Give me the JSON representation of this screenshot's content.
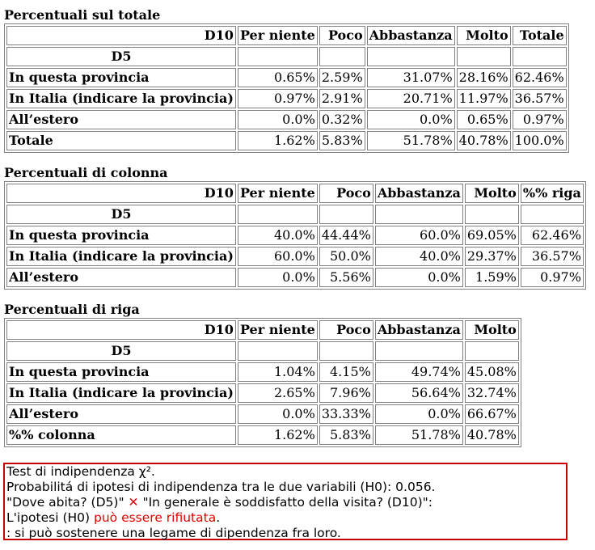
{
  "tables": [
    {
      "title": "Percentuali sul totale",
      "corner": "D10",
      "row_var": "D5",
      "columns": [
        "Per niente",
        "Poco",
        "Abbastanza",
        "Molto",
        "Totale"
      ],
      "rows": [
        {
          "label": "In questa provincia",
          "cells": [
            "0.65%",
            "2.59%",
            "31.07%",
            "28.16%",
            "62.46%"
          ]
        },
        {
          "label": "In Italia (indicare la provincia)",
          "cells": [
            "0.97%",
            "2.91%",
            "20.71%",
            "11.97%",
            "36.57%"
          ]
        },
        {
          "label": "All’estero",
          "cells": [
            "0.0%",
            "0.32%",
            "0.0%",
            "0.65%",
            "0.97%"
          ]
        },
        {
          "label": "Totale",
          "cells": [
            "1.62%",
            "5.83%",
            "51.78%",
            "40.78%",
            "100.0%"
          ]
        }
      ]
    },
    {
      "title": "Percentuali di colonna",
      "corner": "D10",
      "row_var": "D5",
      "columns": [
        "Per niente",
        "Poco",
        "Abbastanza",
        "Molto",
        "%% riga"
      ],
      "rows": [
        {
          "label": "In questa provincia",
          "cells": [
            "40.0%",
            "44.44%",
            "60.0%",
            "69.05%",
            "62.46%"
          ]
        },
        {
          "label": "In Italia (indicare la provincia)",
          "cells": [
            "60.0%",
            "50.0%",
            "40.0%",
            "29.37%",
            "36.57%"
          ]
        },
        {
          "label": "All’estero",
          "cells": [
            "0.0%",
            "5.56%",
            "0.0%",
            "1.59%",
            "0.97%"
          ]
        }
      ]
    },
    {
      "title": "Percentuali di riga",
      "corner": "D10",
      "row_var": "D5",
      "columns": [
        "Per niente",
        "Poco",
        "Abbastanza",
        "Molto"
      ],
      "rows": [
        {
          "label": "In questa provincia",
          "cells": [
            "1.04%",
            "4.15%",
            "49.74%",
            "45.08%"
          ]
        },
        {
          "label": "In Italia (indicare la provincia)",
          "cells": [
            "2.65%",
            "7.96%",
            "56.64%",
            "32.74%"
          ]
        },
        {
          "label": "All’estero",
          "cells": [
            "0.0%",
            "33.33%",
            "0.0%",
            "66.67%"
          ]
        },
        {
          "label": "%% colonna",
          "cells": [
            "1.62%",
            "5.83%",
            "51.78%",
            "40.78%"
          ]
        }
      ]
    }
  ],
  "test": {
    "line1": "Test di indipendenza χ².",
    "line2": "Probabilitá di ipotesi di indipendenza tra le due variabili (H0): 0.056.",
    "line3_a": "\"Dove abita? (D5)\"",
    "line3_icon": "cross-icon",
    "line3_b": "\"In generale è soddisfatto della visita? (D10)\":",
    "line4_a": "L'ipotesi (H0) ",
    "line4_b": "può essere rifiutata",
    "line4_c": ".",
    "line5": ": si può sostenere una legame di dipendenza fra loro.",
    "accent_color": "#cc0000"
  }
}
